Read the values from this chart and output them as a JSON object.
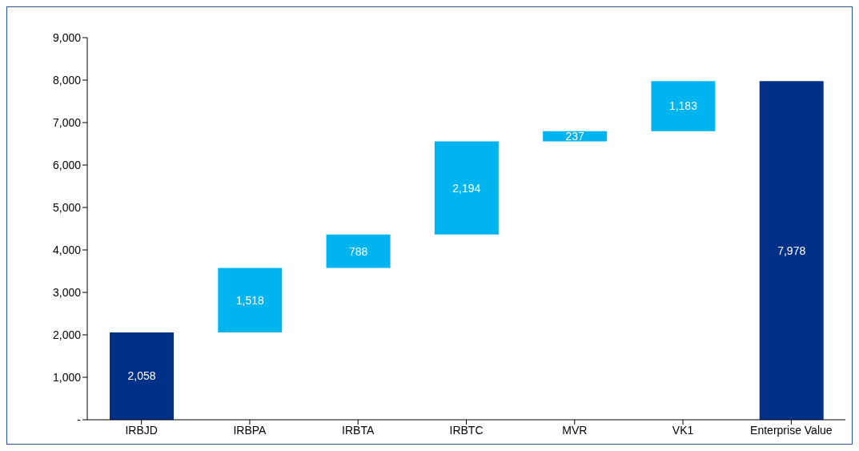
{
  "chart_data": {
    "type": "bar",
    "categories": [
      "IRBJD",
      "IRBPA",
      "IRBTA",
      "IRBTC",
      "MVR",
      "VK1",
      "Enterprise Value"
    ],
    "values": [
      2058,
      1518,
      788,
      2194,
      237,
      1183,
      7978
    ],
    "base": [
      0,
      2058,
      3576,
      4364,
      6558,
      6795,
      0
    ],
    "colors": [
      "#003087",
      "#00b4f0",
      "#00b4f0",
      "#00b4f0",
      "#00b4f0",
      "#00b4f0",
      "#003087"
    ],
    "ylim": [
      0,
      9000
    ],
    "yticks": [
      {
        "value": 0,
        "label": "-"
      },
      {
        "value": 1000,
        "label": "1,000"
      },
      {
        "value": 2000,
        "label": "2,000"
      },
      {
        "value": 3000,
        "label": "3,000"
      },
      {
        "value": 4000,
        "label": "4,000"
      },
      {
        "value": 5000,
        "label": "5,000"
      },
      {
        "value": 6000,
        "label": "6,000"
      },
      {
        "value": 7000,
        "label": "7,000"
      },
      {
        "value": 8000,
        "label": "8,000"
      },
      {
        "value": 9000,
        "label": "9,000"
      }
    ],
    "value_labels": [
      "2,058",
      "1,518",
      "788",
      "2,194",
      "237",
      "1,183",
      "7,978"
    ],
    "grid": false
  }
}
